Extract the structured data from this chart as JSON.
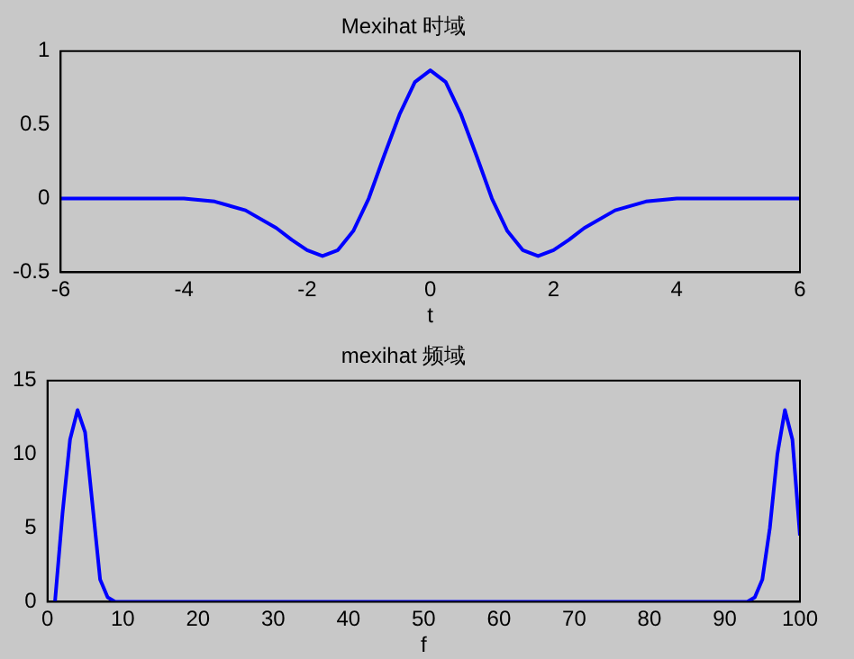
{
  "chart_data": [
    {
      "type": "line",
      "title": "Mexihat 时域",
      "xlabel": "t",
      "xlim": [
        -6,
        6
      ],
      "ylim": [
        -0.5,
        1
      ],
      "xticks": [
        -6,
        -4,
        -2,
        0,
        2,
        4,
        6
      ],
      "yticks": [
        -0.5,
        0,
        0.5,
        1
      ],
      "x": [
        -6,
        -5,
        -4,
        -3.5,
        -3,
        -2.5,
        -2.25,
        -2,
        -1.75,
        -1.5,
        -1.25,
        -1,
        -0.75,
        -0.5,
        -0.25,
        0,
        0.25,
        0.5,
        0.75,
        1,
        1.25,
        1.5,
        1.75,
        2,
        2.25,
        2.5,
        3,
        3.5,
        4,
        5,
        6
      ],
      "series": [
        {
          "color": "#0000ff",
          "values": [
            0,
            0,
            0,
            -0.02,
            -0.08,
            -0.2,
            -0.28,
            -0.35,
            -0.39,
            -0.35,
            -0.22,
            0,
            0.29,
            0.57,
            0.79,
            0.87,
            0.79,
            0.57,
            0.29,
            0,
            -0.22,
            -0.35,
            -0.39,
            -0.35,
            -0.28,
            -0.2,
            -0.08,
            -0.02,
            0,
            0,
            0
          ]
        }
      ]
    },
    {
      "type": "line",
      "title": "mexihat 频域",
      "xlabel": "f",
      "xlim": [
        0,
        100
      ],
      "ylim": [
        0,
        15
      ],
      "xticks": [
        0,
        10,
        20,
        30,
        40,
        50,
        60,
        70,
        80,
        90,
        100
      ],
      "yticks": [
        0,
        5,
        10,
        15
      ],
      "x": [
        1,
        2,
        3,
        4,
        5,
        6,
        7,
        8,
        9,
        50,
        93,
        94,
        95,
        96,
        97,
        98,
        99,
        100
      ],
      "series": [
        {
          "color": "#0000ff",
          "values": [
            0,
            6,
            11,
            13,
            11.5,
            6.5,
            1.5,
            0.3,
            0,
            0,
            0,
            0.3,
            1.5,
            5,
            10,
            13,
            11,
            4.5
          ]
        }
      ]
    }
  ]
}
